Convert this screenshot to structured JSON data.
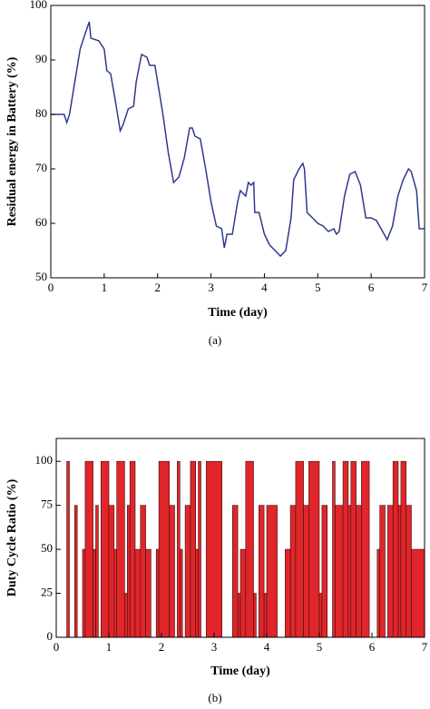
{
  "chart_data": [
    {
      "type": "line",
      "xlabel": "Time (day)",
      "ylabel": "Residual energy in Battery (%)",
      "caption": "(a)",
      "xlim": [
        0,
        7
      ],
      "xticks": [
        0,
        1,
        2,
        3,
        4,
        5,
        6,
        7
      ],
      "ylim": [
        50,
        100
      ],
      "yticks": [
        50,
        60,
        70,
        80,
        90,
        100
      ],
      "color": "#2e3a8c",
      "x": [
        0,
        0.25,
        0.3,
        0.35,
        0.45,
        0.55,
        0.65,
        0.72,
        0.75,
        0.9,
        1.0,
        1.05,
        1.12,
        1.2,
        1.3,
        1.35,
        1.45,
        1.55,
        1.6,
        1.7,
        1.8,
        1.85,
        1.95,
        2.0,
        2.1,
        2.2,
        2.3,
        2.4,
        2.5,
        2.6,
        2.65,
        2.7,
        2.8,
        2.9,
        3.0,
        3.1,
        3.2,
        3.25,
        3.3,
        3.4,
        3.5,
        3.55,
        3.65,
        3.7,
        3.75,
        3.8,
        3.82,
        3.9,
        4.0,
        4.1,
        4.2,
        4.3,
        4.4,
        4.5,
        4.55,
        4.65,
        4.72,
        4.75,
        4.8,
        4.9,
        5.0,
        5.1,
        5.2,
        5.3,
        5.35,
        5.4,
        5.5,
        5.6,
        5.7,
        5.8,
        5.9,
        6.0,
        6.1,
        6.3,
        6.4,
        6.5,
        6.6,
        6.7,
        6.75,
        6.85,
        6.9,
        7.0
      ],
      "values": [
        80,
        80,
        78.5,
        80,
        86,
        92,
        95,
        97,
        94,
        93.5,
        92,
        88,
        87.5,
        83,
        77,
        78,
        81,
        81.5,
        86,
        91,
        90.5,
        89,
        89,
        86,
        80,
        73,
        67.5,
        68.5,
        72,
        77.5,
        77.5,
        76,
        75.5,
        70,
        64,
        59.5,
        59,
        55.5,
        58,
        58,
        64,
        66,
        65,
        67.5,
        67,
        67.5,
        62,
        62,
        58,
        56,
        55,
        54,
        55,
        61,
        68,
        70,
        71,
        70,
        62,
        61,
        60,
        59.5,
        58.5,
        59,
        58,
        58.5,
        65,
        69,
        69.5,
        67,
        61,
        61,
        60.5,
        57,
        59.5,
        65,
        68,
        70,
        69.5,
        66,
        59,
        59
      ]
    },
    {
      "type": "histogram",
      "xlabel": "Time (day)",
      "ylabel": "Duty Cycle Ratio (%)",
      "caption": "(b)",
      "xlim": [
        0,
        7
      ],
      "xticks": [
        0,
        1,
        2,
        3,
        4,
        5,
        6,
        7
      ],
      "ylim": [
        0,
        113
      ],
      "yticks": [
        0,
        25,
        50,
        75,
        100
      ],
      "color": "#e0262b",
      "bins": [
        0,
        0.2,
        0.25,
        0.35,
        0.4,
        0.5,
        0.55,
        0.7,
        0.75,
        0.8,
        0.85,
        1.0,
        1.1,
        1.15,
        1.3,
        1.35,
        1.4,
        1.5,
        1.6,
        1.7,
        1.8,
        1.9,
        1.95,
        2.15,
        2.25,
        2.3,
        2.35,
        2.4,
        2.45,
        2.55,
        2.65,
        2.7,
        2.75,
        2.85,
        3.15,
        3.35,
        3.45,
        3.5,
        3.6,
        3.75,
        3.8,
        3.85,
        3.95,
        4.0,
        4.2,
        4.35,
        4.45,
        4.55,
        4.7,
        4.8,
        5.0,
        5.05,
        5.15,
        5.25,
        5.3,
        5.45,
        5.55,
        5.6,
        5.7,
        5.8,
        5.95,
        6.1,
        6.15,
        6.25,
        6.3,
        6.4,
        6.5,
        6.55,
        6.65,
        6.75,
        7.0
      ],
      "values": [
        0,
        100,
        0,
        75,
        0,
        50,
        100,
        50,
        75,
        0,
        100,
        75,
        50,
        100,
        25,
        75,
        100,
        50,
        75,
        50,
        0,
        50,
        100,
        75,
        0,
        100,
        50,
        0,
        75,
        100,
        50,
        100,
        0,
        100,
        0,
        75,
        25,
        50,
        100,
        25,
        0,
        75,
        25,
        75,
        0,
        50,
        75,
        100,
        75,
        100,
        25,
        75,
        0,
        100,
        75,
        100,
        75,
        100,
        75,
        100,
        0,
        50,
        75,
        0,
        75,
        100,
        75,
        100,
        75,
        50
      ]
    }
  ]
}
